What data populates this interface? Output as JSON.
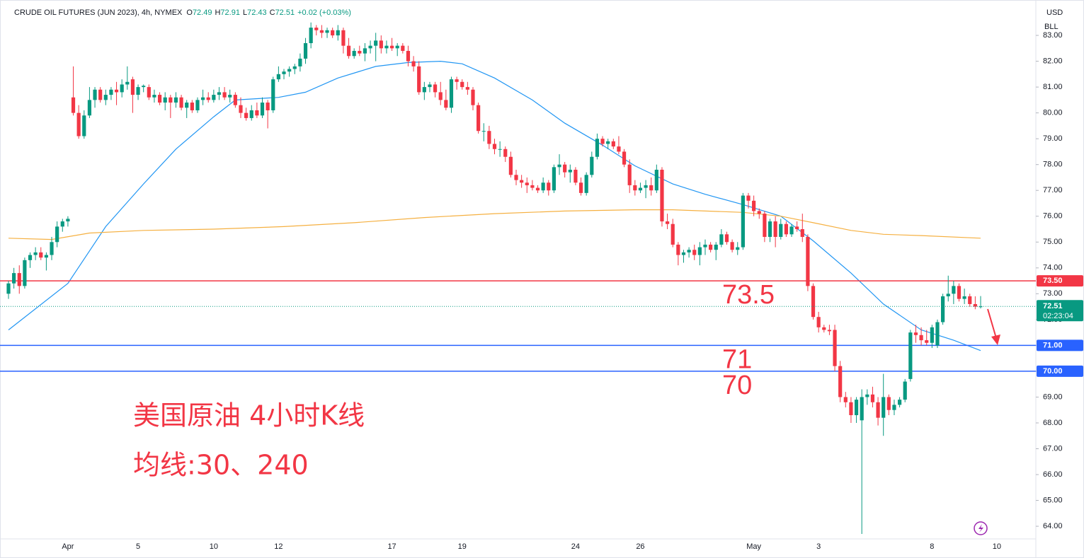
{
  "chart_data": {
    "type": "candlestick",
    "header": {
      "title": "CRUDE OIL FUTURES (JUN 2023), 4h, NYMEX",
      "ohlc_labels": [
        "O",
        "H",
        "L",
        "C"
      ],
      "ohlc_values": [
        72.49,
        72.91,
        72.43,
        72.51
      ],
      "change": "+0.02 (+0.03%)"
    },
    "currency": "USD",
    "unit": "BLL",
    "up_color": "#089981",
    "down_color": "#f23645",
    "grid": false,
    "ylim": [
      63.51,
      84.37
    ],
    "yticks": [
      {
        "value": 64,
        "label": "64.00"
      },
      {
        "value": 65,
        "label": "65.00"
      },
      {
        "value": 66,
        "label": "66.00"
      },
      {
        "value": 67,
        "label": "67.00"
      },
      {
        "value": 68,
        "label": "68.00"
      },
      {
        "value": 69,
        "label": "69.00"
      },
      {
        "value": 70,
        "label": "70.00"
      },
      {
        "value": 71,
        "label": "71.00"
      },
      {
        "value": 72,
        "label": "72.00"
      },
      {
        "value": 73,
        "label": "73.00"
      },
      {
        "value": 74,
        "label": "74.00"
      },
      {
        "value": 75,
        "label": "75.00"
      },
      {
        "value": 76,
        "label": "76.00"
      },
      {
        "value": 77,
        "label": "77.00"
      },
      {
        "value": 78,
        "label": "78.00"
      },
      {
        "value": 79,
        "label": "79.00"
      },
      {
        "value": 80,
        "label": "80.00"
      },
      {
        "value": 81,
        "label": "81.00"
      },
      {
        "value": 82,
        "label": "82.00"
      },
      {
        "value": 83,
        "label": "83.00"
      }
    ],
    "categories": [
      null,
      null,
      null,
      null,
      null,
      null,
      null,
      null,
      null,
      null,
      null,
      "Apr",
      null,
      null,
      null,
      null,
      null,
      null,
      null,
      null,
      null,
      null,
      null,
      null,
      "5",
      null,
      null,
      null,
      null,
      null,
      null,
      null,
      null,
      null,
      null,
      null,
      null,
      null,
      "10",
      null,
      null,
      null,
      null,
      null,
      null,
      null,
      null,
      null,
      null,
      null,
      "12",
      null,
      null,
      null,
      null,
      null,
      null,
      null,
      null,
      null,
      null,
      null,
      null,
      null,
      null,
      null,
      null,
      null,
      null,
      null,
      null,
      "17",
      null,
      null,
      null,
      null,
      null,
      null,
      null,
      null,
      null,
      null,
      null,
      null,
      "19",
      null,
      null,
      null,
      null,
      null,
      null,
      null,
      null,
      null,
      null,
      null,
      null,
      null,
      null,
      null,
      null,
      null,
      null,
      null,
      null,
      "24",
      null,
      null,
      null,
      null,
      null,
      null,
      null,
      null,
      null,
      null,
      null,
      "26",
      null,
      null,
      null,
      null,
      null,
      null,
      null,
      null,
      null,
      null,
      null,
      null,
      null,
      null,
      null,
      null,
      null,
      null,
      null,
      null,
      "May",
      null,
      null,
      null,
      null,
      null,
      null,
      null,
      null,
      null,
      null,
      null,
      "3",
      null,
      null,
      null,
      null,
      null,
      null,
      null,
      null,
      null,
      null,
      null,
      null,
      null,
      null,
      null,
      null,
      null,
      null,
      null,
      null,
      "8",
      null,
      null,
      null,
      null,
      null,
      null,
      null,
      null,
      null,
      null,
      null,
      "10"
    ],
    "candles": [
      [
        73.0,
        73.5,
        72.8,
        73.4
      ],
      [
        73.4,
        74.0,
        73.2,
        73.8
      ],
      [
        73.8,
        74.1,
        73.0,
        73.3
      ],
      [
        73.3,
        74.4,
        73.2,
        74.3
      ],
      [
        74.3,
        74.6,
        74.0,
        74.5
      ],
      [
        74.5,
        74.8,
        74.3,
        74.6
      ],
      [
        74.6,
        74.8,
        74.3,
        74.4
      ],
      [
        74.4,
        74.6,
        73.9,
        74.5
      ],
      [
        74.5,
        75.2,
        74.3,
        75.0
      ],
      [
        75.0,
        75.8,
        74.8,
        75.6
      ],
      [
        75.6,
        75.9,
        75.4,
        75.8
      ],
      [
        75.8,
        76.0,
        75.6,
        75.9
      ],
      [
        80.6,
        81.8,
        79.9,
        80.0
      ],
      [
        80.0,
        80.3,
        79.0,
        79.1
      ],
      [
        79.1,
        80.1,
        79.0,
        79.9
      ],
      [
        79.9,
        81.0,
        79.8,
        80.5
      ],
      [
        80.5,
        81.0,
        80.2,
        80.9
      ],
      [
        80.9,
        81.0,
        80.4,
        80.5
      ],
      [
        80.5,
        80.9,
        80.3,
        80.7
      ],
      [
        80.7,
        81.0,
        80.5,
        80.9
      ],
      [
        80.9,
        81.2,
        80.3,
        80.8
      ],
      [
        80.8,
        81.3,
        80.6,
        81.1
      ],
      [
        81.1,
        81.8,
        80.9,
        81.2
      ],
      [
        81.3,
        81.4,
        80.0,
        80.7
      ],
      [
        80.7,
        81.1,
        80.5,
        81.0
      ],
      [
        81.0,
        81.1,
        80.8,
        81.05
      ],
      [
        81.0,
        81.1,
        80.5,
        80.6
      ],
      [
        80.6,
        80.9,
        80.4,
        80.7
      ],
      [
        80.7,
        80.8,
        80.3,
        80.4
      ],
      [
        80.4,
        80.8,
        80.1,
        80.6
      ],
      [
        80.6,
        80.7,
        79.8,
        80.4
      ],
      [
        80.4,
        80.8,
        80.2,
        80.6
      ],
      [
        80.6,
        80.7,
        80.1,
        80.2
      ],
      [
        80.2,
        80.5,
        79.8,
        80.4
      ],
      [
        80.4,
        80.5,
        80.0,
        80.1
      ],
      [
        80.1,
        80.6,
        80.0,
        80.5
      ],
      [
        80.5,
        80.9,
        80.3,
        80.6
      ],
      [
        80.6,
        80.8,
        80.4,
        80.5
      ],
      [
        80.5,
        80.9,
        80.4,
        80.7
      ],
      [
        80.7,
        81.0,
        80.5,
        80.8
      ],
      [
        80.8,
        81.0,
        80.5,
        80.6
      ],
      [
        80.6,
        80.9,
        80.4,
        80.7
      ],
      [
        80.7,
        80.8,
        80.2,
        80.3
      ],
      [
        80.3,
        80.6,
        79.8,
        80.0
      ],
      [
        80.0,
        80.2,
        79.7,
        79.8
      ],
      [
        79.8,
        80.3,
        79.7,
        80.1
      ],
      [
        80.1,
        80.4,
        79.8,
        79.9
      ],
      [
        79.9,
        80.6,
        79.8,
        80.4
      ],
      [
        80.4,
        80.5,
        79.4,
        80.1
      ],
      [
        80.1,
        81.4,
        80.0,
        81.3
      ],
      [
        81.3,
        81.8,
        81.2,
        81.5
      ],
      [
        81.5,
        81.7,
        81.3,
        81.6
      ],
      [
        81.6,
        81.8,
        81.4,
        81.7
      ],
      [
        81.7,
        81.9,
        81.5,
        81.8
      ],
      [
        81.8,
        82.3,
        81.6,
        82.1
      ],
      [
        82.1,
        82.9,
        81.9,
        82.7
      ],
      [
        82.7,
        83.5,
        82.5,
        83.3
      ],
      [
        83.3,
        83.4,
        83.0,
        83.2
      ],
      [
        83.2,
        83.4,
        82.9,
        83.1
      ],
      [
        83.1,
        83.3,
        82.9,
        83.2
      ],
      [
        83.2,
        83.3,
        82.9,
        83.0
      ],
      [
        83.0,
        83.4,
        82.8,
        83.2
      ],
      [
        83.2,
        83.3,
        82.3,
        82.6
      ],
      [
        82.6,
        82.9,
        82.1,
        82.2
      ],
      [
        82.2,
        82.5,
        82.1,
        82.4
      ],
      [
        82.4,
        82.6,
        82.2,
        82.3
      ],
      [
        82.3,
        82.7,
        82.0,
        82.5
      ],
      [
        82.5,
        82.8,
        82.3,
        82.6
      ],
      [
        82.6,
        83.1,
        82.0,
        82.8
      ],
      [
        82.8,
        83.0,
        82.3,
        82.5
      ],
      [
        82.5,
        82.8,
        82.3,
        82.6
      ],
      [
        82.6,
        82.9,
        82.4,
        82.5
      ],
      [
        82.5,
        82.7,
        82.2,
        82.6
      ],
      [
        82.6,
        82.7,
        82.3,
        82.4
      ],
      [
        82.4,
        82.6,
        81.8,
        82.0
      ],
      [
        82.0,
        82.2,
        81.6,
        81.8
      ],
      [
        81.8,
        82.0,
        80.7,
        80.8
      ],
      [
        80.8,
        81.2,
        80.5,
        81.0
      ],
      [
        81.0,
        81.2,
        80.8,
        81.1
      ],
      [
        81.1,
        81.2,
        80.6,
        80.8
      ],
      [
        80.8,
        81.2,
        80.3,
        80.5
      ],
      [
        80.5,
        80.9,
        80.1,
        80.2
      ],
      [
        80.2,
        81.4,
        80.0,
        81.3
      ],
      [
        81.3,
        81.4,
        80.9,
        81.2
      ],
      [
        81.2,
        81.3,
        80.9,
        81.0
      ],
      [
        81.0,
        81.2,
        80.7,
        80.9
      ],
      [
        80.9,
        81.0,
        80.1,
        80.3
      ],
      [
        80.3,
        80.4,
        79.2,
        79.3
      ],
      [
        79.3,
        79.6,
        78.9,
        79.3
      ],
      [
        79.3,
        79.5,
        78.6,
        78.8
      ],
      [
        78.8,
        79.0,
        78.4,
        78.6
      ],
      [
        78.6,
        78.9,
        78.3,
        78.6
      ],
      [
        78.6,
        78.7,
        78.1,
        78.3
      ],
      [
        78.3,
        78.5,
        77.5,
        77.6
      ],
      [
        77.6,
        77.8,
        77.2,
        77.4
      ],
      [
        77.4,
        77.6,
        77.1,
        77.3
      ],
      [
        77.3,
        77.5,
        76.9,
        77.2
      ],
      [
        77.2,
        77.4,
        77.0,
        77.1
      ],
      [
        77.1,
        77.2,
        76.9,
        77.0
      ],
      [
        77.0,
        77.5,
        76.9,
        77.3
      ],
      [
        77.3,
        77.4,
        76.8,
        77.0
      ],
      [
        77.0,
        78.0,
        76.9,
        77.9
      ],
      [
        77.9,
        78.4,
        77.6,
        78.0
      ],
      [
        78.0,
        78.1,
        77.5,
        77.7
      ],
      [
        77.7,
        78.0,
        77.3,
        77.8
      ],
      [
        77.8,
        77.9,
        77.2,
        77.3
      ],
      [
        77.3,
        77.5,
        76.8,
        76.9
      ],
      [
        76.9,
        77.7,
        76.8,
        77.6
      ],
      [
        77.6,
        78.5,
        77.5,
        78.3
      ],
      [
        78.3,
        79.2,
        78.2,
        79.0
      ],
      [
        79.0,
        79.1,
        78.7,
        78.8
      ],
      [
        78.8,
        79.0,
        78.6,
        78.9
      ],
      [
        78.9,
        79.0,
        78.6,
        78.7
      ],
      [
        78.7,
        79.1,
        78.4,
        78.5
      ],
      [
        78.5,
        78.6,
        77.9,
        78.0
      ],
      [
        78.0,
        78.2,
        76.9,
        77.2
      ],
      [
        77.2,
        77.4,
        76.8,
        77.0
      ],
      [
        77.0,
        77.3,
        76.9,
        77.1
      ],
      [
        77.1,
        77.4,
        76.7,
        77.2
      ],
      [
        77.2,
        77.5,
        76.8,
        77.0
      ],
      [
        77.0,
        78.0,
        76.9,
        77.8
      ],
      [
        77.8,
        77.9,
        75.6,
        75.8
      ],
      [
        75.8,
        76.1,
        75.5,
        75.7
      ],
      [
        75.7,
        75.9,
        74.8,
        74.9
      ],
      [
        74.9,
        75.0,
        74.1,
        74.5
      ],
      [
        74.5,
        74.7,
        74.2,
        74.6
      ],
      [
        74.6,
        74.8,
        74.4,
        74.7
      ],
      [
        74.7,
        74.9,
        74.3,
        74.5
      ],
      [
        74.5,
        75.0,
        74.1,
        74.8
      ],
      [
        74.8,
        75.1,
        74.5,
        74.9
      ],
      [
        74.9,
        75.0,
        74.6,
        74.7
      ],
      [
        74.7,
        75.0,
        74.3,
        74.9
      ],
      [
        74.9,
        75.5,
        74.8,
        75.3
      ],
      [
        75.3,
        75.4,
        74.9,
        75.0
      ],
      [
        75.0,
        75.1,
        74.6,
        74.7
      ],
      [
        74.7,
        75.0,
        74.5,
        74.8
      ],
      [
        74.8,
        76.9,
        74.7,
        76.8
      ],
      [
        76.8,
        76.9,
        76.3,
        76.6
      ],
      [
        76.6,
        76.8,
        76.0,
        76.2
      ],
      [
        76.2,
        76.3,
        75.9,
        76.1
      ],
      [
        76.1,
        76.2,
        75.0,
        75.2
      ],
      [
        75.2,
        75.9,
        75.0,
        75.8
      ],
      [
        75.8,
        76.0,
        74.8,
        75.2
      ],
      [
        75.2,
        75.9,
        75.1,
        75.7
      ],
      [
        75.7,
        75.8,
        75.2,
        75.3
      ],
      [
        75.3,
        75.7,
        75.2,
        75.6
      ],
      [
        75.6,
        75.8,
        75.4,
        75.5
      ],
      [
        75.5,
        76.1,
        75.0,
        75.2
      ],
      [
        75.2,
        75.3,
        73.1,
        73.3
      ],
      [
        73.3,
        73.4,
        72.0,
        72.1
      ],
      [
        72.1,
        72.3,
        71.5,
        71.7
      ],
      [
        71.7,
        71.8,
        71.5,
        71.6
      ],
      [
        71.6,
        71.8,
        71.4,
        71.55
      ],
      [
        71.6,
        71.8,
        70.0,
        70.2
      ],
      [
        70.2,
        70.4,
        68.8,
        69.0
      ],
      [
        69.0,
        69.2,
        68.6,
        68.8
      ],
      [
        68.8,
        69.0,
        68.0,
        68.3
      ],
      [
        68.3,
        69.0,
        68.0,
        68.9
      ],
      [
        68.1,
        69.3,
        63.7,
        69.0
      ],
      [
        69.0,
        69.3,
        68.7,
        69.1
      ],
      [
        69.1,
        69.4,
        68.6,
        68.8
      ],
      [
        68.8,
        69.0,
        67.9,
        68.2
      ],
      [
        68.2,
        69.9,
        67.5,
        69.0
      ],
      [
        69.0,
        69.1,
        68.3,
        68.5
      ],
      [
        68.5,
        68.9,
        68.3,
        68.7
      ],
      [
        68.7,
        69.0,
        68.6,
        68.9
      ],
      [
        68.9,
        69.7,
        68.8,
        69.6
      ],
      [
        69.7,
        71.6,
        69.6,
        71.5
      ],
      [
        71.5,
        71.8,
        71.1,
        71.4
      ],
      [
        71.4,
        71.7,
        71.0,
        71.2
      ],
      [
        71.2,
        71.6,
        71.0,
        71.1
      ],
      [
        71.1,
        71.8,
        70.9,
        71.7
      ],
      [
        71.0,
        72.0,
        70.9,
        71.9
      ],
      [
        71.9,
        73.0,
        71.8,
        72.9
      ],
      [
        72.9,
        73.7,
        72.7,
        73.0
      ],
      [
        73.0,
        73.5,
        72.6,
        73.3
      ],
      [
        73.3,
        73.4,
        72.7,
        72.8
      ],
      [
        72.8,
        73.2,
        72.6,
        72.9
      ],
      [
        72.9,
        73.0,
        72.5,
        72.6
      ],
      [
        72.6,
        72.9,
        72.4,
        72.5
      ],
      [
        72.49,
        72.91,
        72.43,
        72.51
      ],
      null,
      null,
      null
    ],
    "lines": [
      {
        "color": "#2196f3",
        "x": [
          0,
          11,
          18,
          25,
          31,
          38,
          42,
          50,
          55,
          61,
          68,
          74,
          80,
          84,
          90,
          97,
          103,
          110,
          116,
          123,
          129,
          136,
          143,
          149,
          156,
          162,
          169,
          175,
          180
        ],
        "values": [
          71.6,
          73.4,
          75.6,
          77.25,
          78.6,
          79.85,
          80.5,
          80.6,
          80.8,
          81.35,
          81.8,
          81.95,
          82.0,
          81.9,
          81.35,
          80.5,
          79.6,
          78.75,
          77.95,
          77.25,
          76.85,
          76.45,
          76.0,
          75.05,
          73.8,
          72.6,
          71.6,
          71.2,
          70.8
        ]
      },
      {
        "color": "#f5b041",
        "x": [
          0,
          8,
          15,
          25,
          38,
          51,
          64,
          77,
          90,
          103,
          116,
          123,
          136,
          143,
          149,
          156,
          162,
          169,
          180
        ],
        "values": [
          75.15,
          75.1,
          75.35,
          75.45,
          75.5,
          75.6,
          75.75,
          75.95,
          76.1,
          76.2,
          76.25,
          76.25,
          76.15,
          76.0,
          75.75,
          75.45,
          75.3,
          75.25,
          75.15
        ]
      }
    ],
    "hlines": [
      {
        "value": 73.5,
        "label": "73.50",
        "note": "73.5",
        "color": "#f23645"
      },
      {
        "value": 71,
        "label": "71.00",
        "note": "71",
        "color": "#2962ff"
      },
      {
        "value": 70,
        "label": "70.00",
        "note": "70",
        "color": "#2962ff"
      }
    ],
    "last": {
      "value": 72.51,
      "label": "72.51",
      "countdown": "02:23:04",
      "color": "#089981"
    },
    "annotations": [
      "美国原油 4小时K线",
      "均线:30、240"
    ]
  }
}
